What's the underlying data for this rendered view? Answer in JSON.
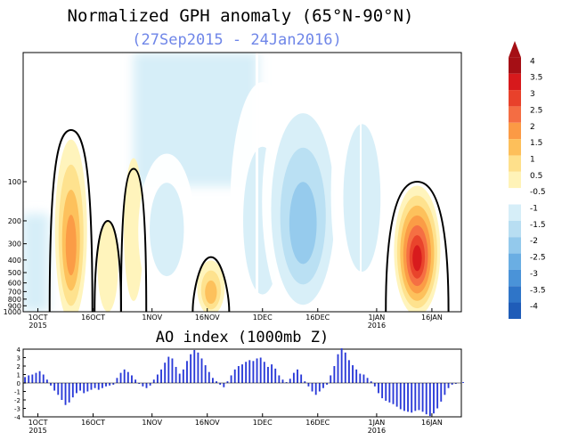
{
  "chart_data": [
    {
      "type": "heatmap",
      "title": "Normalized GPH anomaly (65°N-90°N)",
      "subtitle": "(27Sep2015 - 24Jan2016)",
      "xlabel": "",
      "ylabel": "",
      "y_scale": "log-pressure",
      "y_ticks": [
        "100",
        "200",
        "300",
        "400",
        "500",
        "600",
        "700",
        "800",
        "900",
        "1000"
      ],
      "x_ticks": [
        {
          "date": "2015-10-01",
          "label": "1OCT",
          "sub": "2015"
        },
        {
          "date": "2015-10-16",
          "label": "16OCT",
          "sub": ""
        },
        {
          "date": "2015-11-01",
          "label": "1NOV",
          "sub": ""
        },
        {
          "date": "2015-11-16",
          "label": "16NOV",
          "sub": ""
        },
        {
          "date": "2015-12-01",
          "label": "1DEC",
          "sub": ""
        },
        {
          "date": "2015-12-16",
          "label": "16DEC",
          "sub": ""
        },
        {
          "date": "2016-01-01",
          "label": "1JAN",
          "sub": "2016"
        },
        {
          "date": "2016-01-16",
          "label": "16JAN",
          "sub": ""
        }
      ],
      "x_range": [
        "2015-09-27",
        "2016-01-24"
      ],
      "colorbar": {
        "levels": [
          "4",
          "3.5",
          "3",
          "2.5",
          "2",
          "1.5",
          "1",
          "0.5",
          "-0.5",
          "-1",
          "-1.5",
          "-2",
          "-2.5",
          "-3",
          "-3.5",
          "-4"
        ],
        "colors": [
          "#a50f15",
          "#d7191c",
          "#e8412b",
          "#f46d43",
          "#fb9a45",
          "#fdbf5a",
          "#fee08b",
          "#fff3b8",
          "#ffffff",
          "#d6eef8",
          "#b8def2",
          "#93c9ec",
          "#6aaee3",
          "#4a93d8",
          "#2f75c8",
          "#1f5cb8"
        ]
      },
      "anomaly_features": [
        {
          "date": "2015-10-10",
          "center_hpa": 350,
          "top_hpa": 60,
          "value": 2.0
        },
        {
          "date": "2015-10-20",
          "center_hpa": 450,
          "top_hpa": 200,
          "value": 0.7
        },
        {
          "date": "2015-10-27",
          "center_hpa": 150,
          "top_hpa": 90,
          "value": 0.6
        },
        {
          "date": "2015-11-05",
          "center_hpa": 220,
          "top_hpa": 80,
          "value": -1.0
        },
        {
          "date": "2015-11-17",
          "center_hpa": 750,
          "top_hpa": 380,
          "value": 1.5
        },
        {
          "date": "2015-12-01",
          "center_hpa": 300,
          "top_hpa": 10,
          "value": -1.3
        },
        {
          "date": "2015-12-12",
          "center_hpa": 250,
          "top_hpa": 10,
          "value": -2.0
        },
        {
          "date": "2015-12-28",
          "center_hpa": 150,
          "top_hpa": 10,
          "value": -1.2
        },
        {
          "date": "2016-01-12",
          "center_hpa": 400,
          "top_hpa": 100,
          "value": 3.6
        }
      ]
    },
    {
      "type": "bar",
      "title": "AO index (1000mb Z)",
      "xlabel": "",
      "ylabel": "",
      "ylim": [
        -4,
        4
      ],
      "y_ticks": [
        "4",
        "3",
        "2",
        "1",
        "0",
        "-1",
        "-2",
        "-3",
        "-4"
      ],
      "x_ticks": [
        {
          "date": "2015-10-01",
          "label": "1OCT",
          "sub": "2015"
        },
        {
          "date": "2015-10-16",
          "label": "16OCT",
          "sub": ""
        },
        {
          "date": "2015-11-01",
          "label": "1NOV",
          "sub": ""
        },
        {
          "date": "2015-11-16",
          "label": "16NOV",
          "sub": ""
        },
        {
          "date": "2015-12-01",
          "label": "1DEC",
          "sub": ""
        },
        {
          "date": "2015-12-16",
          "label": "16DEC",
          "sub": ""
        },
        {
          "date": "2016-01-01",
          "label": "1JAN",
          "sub": "2016"
        },
        {
          "date": "2016-01-16",
          "label": "16JAN",
          "sub": ""
        }
      ],
      "start_date": "2015-09-27",
      "bar_color": "#2a3ad8",
      "values": [
        0.7,
        0.9,
        1.0,
        1.2,
        1.4,
        1.0,
        0.4,
        -0.3,
        -0.9,
        -1.4,
        -2.0,
        -2.6,
        -2.3,
        -1.7,
        -1.2,
        -0.9,
        -1.2,
        -1.0,
        -0.8,
        -0.6,
        -0.8,
        -0.6,
        -0.4,
        -0.3,
        -0.2,
        0.6,
        1.2,
        1.6,
        1.3,
        0.9,
        0.4,
        -0.1,
        -0.4,
        -0.6,
        -0.3,
        0.4,
        1.0,
        1.6,
        2.4,
        3.1,
        2.9,
        1.9,
        1.1,
        1.6,
        2.6,
        3.4,
        3.9,
        3.6,
        2.9,
        2.1,
        1.3,
        0.6,
        0.2,
        -0.2,
        -0.5,
        0.2,
        0.9,
        1.6,
        2.0,
        2.2,
        2.5,
        2.7,
        2.6,
        2.9,
        3.0,
        2.5,
        1.9,
        2.2,
        1.7,
        0.9,
        0.4,
        0.1,
        0.5,
        1.2,
        1.6,
        1.0,
        0.2,
        -0.4,
        -1.0,
        -1.4,
        -1.0,
        -0.6,
        -0.2,
        0.9,
        2.0,
        3.4,
        4.1,
        3.6,
        2.7,
        2.1,
        1.6,
        1.1,
        1.0,
        0.6,
        0.2,
        -0.4,
        -1.2,
        -1.8,
        -2.1,
        -2.3,
        -2.5,
        -2.8,
        -3.1,
        -3.3,
        -3.4,
        -3.5,
        -3.3,
        -3.2,
        -3.4,
        -3.7,
        -3.9,
        -3.6,
        -3.0,
        -2.2,
        -1.4,
        -0.6,
        -0.2,
        -0.1,
        0.0,
        0.1
      ]
    }
  ]
}
